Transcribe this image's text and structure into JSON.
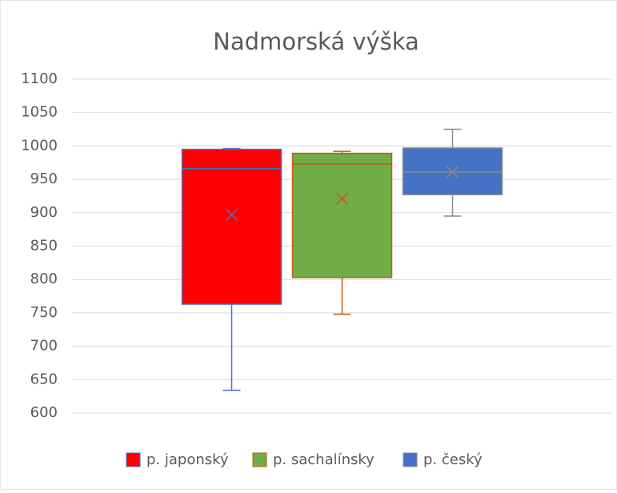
{
  "chart_data": {
    "type": "box",
    "title": "Nadmorská výška",
    "ylim": [
      600,
      1100
    ],
    "yticks": [
      600,
      650,
      700,
      750,
      800,
      850,
      900,
      950,
      1000,
      1050,
      1100
    ],
    "grid": true,
    "legend": "bottom",
    "series": [
      {
        "name": "p. japonský",
        "color": "#ff0000",
        "edge": "#4472c4",
        "min": 634,
        "q1": 763,
        "median": 966,
        "q3": 995,
        "max": 996,
        "mean": 897
      },
      {
        "name": "p. sachalínsky",
        "color": "#70ad47",
        "edge": "#c55a11",
        "min": 748,
        "q1": 803,
        "median": 973,
        "q3": 989,
        "max": 992,
        "mean": 921
      },
      {
        "name": "p. český",
        "color": "#4472c4",
        "edge": "#8c8c8c",
        "min": 895,
        "q1": 927,
        "median": 961,
        "q3": 997,
        "max": 1025,
        "mean": 961
      }
    ]
  }
}
